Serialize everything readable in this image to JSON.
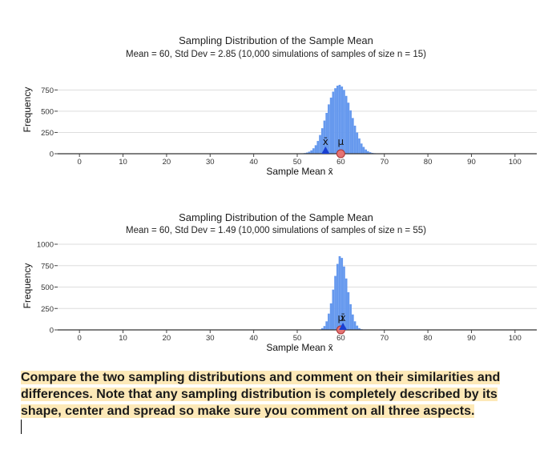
{
  "chart_data": [
    {
      "type": "bar",
      "title": "Sampling Distribution of the Sample Mean",
      "subtitle": "Mean = 60, Std Dev = 2.85  (10,000 simulations of samples of size n = 15)",
      "xlabel": "Sample Mean x̄",
      "ylabel": "Frequency",
      "xlim": [
        -5,
        105
      ],
      "ylim": [
        0,
        800
      ],
      "xticks": [
        "0",
        "10",
        "20",
        "30",
        "40",
        "50",
        "60",
        "70",
        "80",
        "90",
        "100"
      ],
      "yticks": [
        "0",
        "250",
        "500",
        "750"
      ],
      "grid": true,
      "bin_width": 0.5,
      "bin_centers": [
        51.25,
        51.75,
        52.25,
        52.75,
        53.25,
        53.75,
        54.25,
        54.75,
        55.25,
        55.75,
        56.25,
        56.75,
        57.25,
        57.75,
        58.25,
        58.75,
        59.25,
        59.75,
        60.25,
        60.75,
        61.25,
        61.75,
        62.25,
        62.75,
        63.25,
        63.75,
        64.25,
        64.75,
        65.25,
        65.75,
        66.25,
        66.75,
        67.25,
        67.75,
        68.25,
        68.75
      ],
      "frequencies": [
        4,
        8,
        14,
        24,
        40,
        64,
        100,
        150,
        220,
        300,
        390,
        480,
        580,
        660,
        730,
        770,
        800,
        810,
        790,
        750,
        680,
        600,
        510,
        420,
        330,
        250,
        180,
        120,
        80,
        50,
        30,
        18,
        10,
        6,
        3,
        2
      ],
      "color": "#6699ee",
      "markers": [
        {
          "label": "x̄",
          "value": 56.5,
          "shape": "triangle",
          "color": "#1a3fd1"
        },
        {
          "label": "μ",
          "value": 60,
          "shape": "circle",
          "color": "#e57373"
        }
      ]
    },
    {
      "type": "bar",
      "title": "Sampling Distribution of the Sample Mean",
      "subtitle": "Mean = 60, Std Dev = 1.49  (10,000 simulations of samples of size n = 55)",
      "xlabel": "Sample Mean x̄",
      "ylabel": "Frequency",
      "xlim": [
        -5,
        105
      ],
      "ylim": [
        0,
        1000
      ],
      "xticks": [
        "0",
        "10",
        "20",
        "30",
        "40",
        "50",
        "60",
        "70",
        "80",
        "90",
        "100"
      ],
      "yticks": [
        "0",
        "250",
        "500",
        "750",
        "1000"
      ],
      "grid": true,
      "bin_width": 0.5,
      "bin_centers": [
        55.25,
        55.75,
        56.25,
        56.75,
        57.25,
        57.75,
        58.25,
        58.75,
        59.25,
        59.75,
        60.25,
        60.75,
        61.25,
        61.75,
        62.25,
        62.75,
        63.25,
        63.75,
        64.25,
        64.75
      ],
      "frequencies": [
        5,
        20,
        45,
        100,
        190,
        310,
        470,
        630,
        770,
        860,
        840,
        740,
        600,
        440,
        300,
        180,
        100,
        50,
        20,
        8
      ],
      "color": "#6699ee",
      "markers": [
        {
          "label": "μ",
          "value": 60,
          "shape": "circle",
          "color": "#e57373"
        },
        {
          "label": "x̄",
          "value": 60.5,
          "shape": "triangle",
          "color": "#1a3fd1"
        }
      ]
    }
  ],
  "prompt": {
    "text": "Compare the two sampling distributions and comment on their similarities and differences. Note that any sampling distribution is completely described by its shape, center and spread so make sure you comment on all three aspects."
  }
}
